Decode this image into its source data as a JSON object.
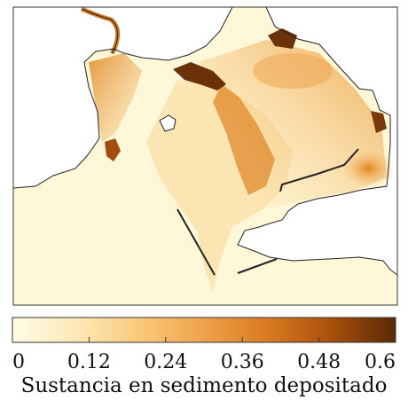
{
  "colorbar": {
    "label": "Sustancia en sedimento depositado",
    "ticks": [
      "0",
      "0.12",
      "0.24",
      "0.36",
      "0.48",
      "0.6"
    ],
    "range": [
      0,
      0.6
    ],
    "colors": [
      "#fffbe6",
      "#fde9b8",
      "#f9c97a",
      "#eea24a",
      "#d97a1f",
      "#a84f0c",
      "#5a2a06"
    ]
  },
  "map": {
    "background_color": "#ffffff",
    "water_color": "#fff8d8",
    "outline_color": "#222222"
  }
}
